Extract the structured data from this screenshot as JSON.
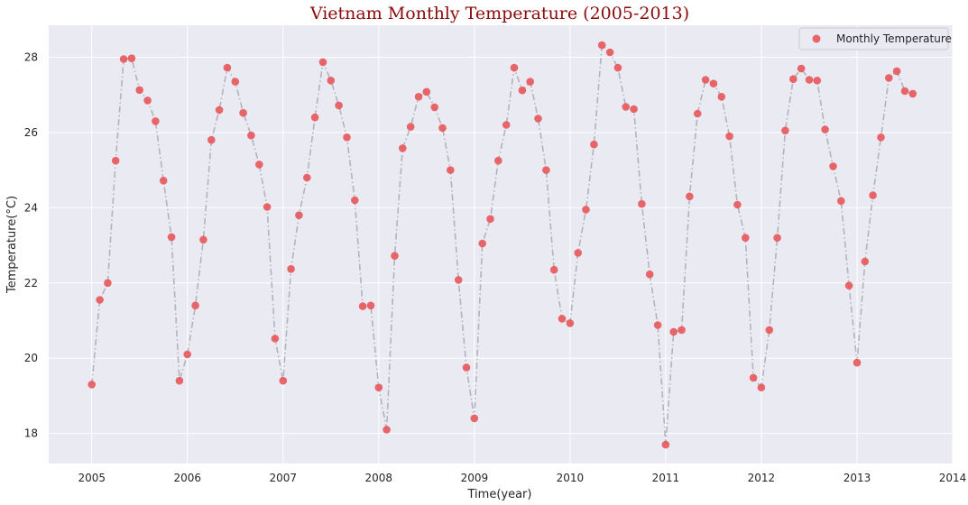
{
  "chart_data": {
    "type": "line",
    "title": "Vietnam Monthly Temperature (2005-2013)",
    "xlabel": "Time(year)",
    "ylabel": "Temperature(°C)",
    "xlim": [
      2004.55,
      2014.0
    ],
    "ylim": [
      17.2,
      28.85
    ],
    "xticks": [
      2005,
      2006,
      2007,
      2008,
      2009,
      2010,
      2011,
      2012,
      2013,
      2014
    ],
    "yticks": [
      18,
      20,
      22,
      24,
      26,
      28
    ],
    "grid": true,
    "legend": {
      "position": "top-right",
      "entries": [
        "Monthly Temperature"
      ]
    },
    "colors": {
      "background": "#eaeaf2",
      "marker": "#e8585a",
      "line": "#b3b3bd",
      "grid": "#ffffff",
      "title": "#8b0a0a"
    },
    "series": [
      {
        "name": "Monthly Temperature",
        "start": "2005-01",
        "values": [
          19.3,
          21.55,
          22.0,
          25.25,
          27.95,
          27.97,
          27.13,
          26.85,
          26.3,
          24.72,
          23.22,
          19.4,
          20.1,
          21.4,
          23.15,
          25.8,
          26.6,
          27.72,
          27.35,
          26.52,
          25.92,
          25.15,
          24.02,
          20.52,
          19.4,
          22.37,
          23.8,
          24.8,
          26.4,
          27.87,
          27.38,
          26.72,
          25.87,
          24.2,
          21.38,
          21.4,
          19.22,
          18.1,
          22.72,
          25.58,
          26.15,
          26.95,
          27.08,
          26.67,
          26.12,
          25.0,
          22.08,
          19.75,
          18.4,
          23.05,
          23.7,
          25.25,
          26.2,
          27.72,
          27.12,
          27.35,
          26.37,
          25.0,
          22.35,
          21.05,
          20.93,
          22.8,
          23.95,
          25.68,
          28.32,
          28.13,
          27.72,
          26.68,
          26.62,
          24.1,
          22.23,
          20.88,
          17.7,
          20.7,
          20.75,
          24.3,
          26.5,
          27.4,
          27.3,
          26.95,
          25.9,
          24.08,
          23.2,
          19.48,
          19.22,
          20.75,
          23.2,
          26.05,
          27.42,
          27.7,
          27.4,
          27.38,
          26.08,
          25.1,
          24.18,
          21.93,
          19.88,
          22.57,
          24.33,
          25.87,
          27.45,
          27.63,
          27.1,
          27.03
        ]
      }
    ]
  }
}
